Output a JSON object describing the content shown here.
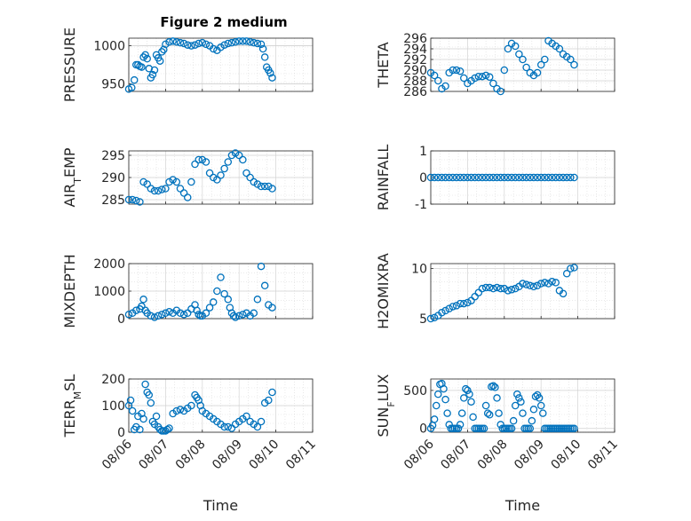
{
  "figure": {
    "title": "Figure 2 medium"
  },
  "chart_data": [
    {
      "type": "scatter",
      "title": "Figure 2 medium",
      "ylabel": "PRESSURE",
      "xlabel": "",
      "xlim": [
        "08/06",
        "08/11"
      ],
      "ylim": [
        940,
        1010
      ],
      "yticks": [
        950,
        1000
      ],
      "xticks": [],
      "grid": true,
      "series": [
        {
          "x": [
            0.0,
            0.08,
            0.15,
            0.2,
            0.25,
            0.3,
            0.35,
            0.4,
            0.45,
            0.5,
            0.55,
            0.6,
            0.65,
            0.7,
            0.75,
            0.8,
            0.85,
            0.9,
            0.95,
            1.0,
            1.1,
            1.2,
            1.3,
            1.4,
            1.5,
            1.6,
            1.7,
            1.8,
            1.9,
            2.0,
            2.1,
            2.2,
            2.3,
            2.4,
            2.5,
            2.6,
            2.7,
            2.8,
            2.9,
            3.0,
            3.1,
            3.2,
            3.3,
            3.4,
            3.5,
            3.6,
            3.65,
            3.7,
            3.75,
            3.8,
            3.85,
            3.9
          ],
          "y": [
            943,
            945,
            955,
            975,
            975,
            973,
            972,
            985,
            988,
            983,
            970,
            958,
            962,
            968,
            988,
            984,
            980,
            992,
            995,
            1002,
            1005,
            1006,
            1005,
            1004,
            1003,
            1001,
            1000,
            1001,
            1003,
            1004,
            1002,
            1000,
            996,
            994,
            998,
            1001,
            1003,
            1004,
            1005,
            1006,
            1006,
            1006,
            1005,
            1004,
            1003,
            1002,
            996,
            985,
            972,
            968,
            964,
            958
          ]
        }
      ]
    },
    {
      "type": "scatter",
      "ylabel": "THETA",
      "xlabel": "",
      "xlim": [
        "08/06",
        "08/11"
      ],
      "ylim": [
        286,
        296
      ],
      "yticks": [
        286,
        288,
        290,
        292,
        294,
        296
      ],
      "xticks": [],
      "grid": true,
      "series": [
        {
          "x": [
            0.0,
            0.1,
            0.2,
            0.3,
            0.4,
            0.5,
            0.6,
            0.7,
            0.8,
            0.9,
            1.0,
            1.1,
            1.2,
            1.3,
            1.4,
            1.5,
            1.6,
            1.7,
            1.8,
            1.9,
            2.0,
            2.1,
            2.2,
            2.3,
            2.4,
            2.5,
            2.6,
            2.7,
            2.8,
            2.9,
            3.0,
            3.1,
            3.2,
            3.3,
            3.4,
            3.5,
            3.6,
            3.7,
            3.8,
            3.9
          ],
          "y": [
            289.5,
            289.0,
            288.0,
            286.5,
            287.0,
            289.5,
            290.0,
            290.0,
            289.8,
            288.5,
            287.5,
            288.0,
            288.5,
            288.8,
            288.8,
            289.0,
            288.7,
            287.5,
            286.5,
            286.0,
            290.0,
            294.0,
            295.0,
            294.5,
            293.0,
            292.0,
            290.5,
            289.5,
            289.0,
            289.5,
            291.0,
            292.0,
            295.5,
            295.0,
            294.5,
            294.0,
            293.0,
            292.5,
            292.0,
            291.0
          ]
        }
      ]
    },
    {
      "type": "scatter",
      "ylabel": "AIR_TEMP",
      "xlabel": "",
      "xlim": [
        "08/06",
        "08/11"
      ],
      "ylim": [
        284,
        296
      ],
      "yticks": [
        285,
        290,
        295
      ],
      "xticks": [],
      "grid": true,
      "series": [
        {
          "x": [
            0.0,
            0.1,
            0.2,
            0.3,
            0.4,
            0.5,
            0.6,
            0.7,
            0.8,
            0.9,
            1.0,
            1.1,
            1.2,
            1.3,
            1.4,
            1.5,
            1.6,
            1.7,
            1.8,
            1.9,
            2.0,
            2.1,
            2.2,
            2.3,
            2.4,
            2.5,
            2.6,
            2.7,
            2.8,
            2.9,
            3.0,
            3.1,
            3.2,
            3.3,
            3.4,
            3.5,
            3.6,
            3.7,
            3.8,
            3.9
          ],
          "y": [
            285.0,
            285.0,
            284.8,
            284.5,
            289.0,
            288.5,
            287.5,
            287.0,
            287.0,
            287.3,
            287.5,
            289.0,
            289.5,
            289.0,
            287.5,
            286.5,
            285.5,
            289.0,
            293.0,
            294.0,
            294.0,
            293.5,
            291.0,
            290.0,
            289.5,
            290.5,
            292.0,
            293.5,
            295.0,
            295.5,
            295.0,
            294.0,
            291.0,
            290.0,
            289.0,
            288.5,
            288.0,
            288.0,
            288.0,
            287.5
          ]
        }
      ]
    },
    {
      "type": "scatter",
      "ylabel": "RAINFALL",
      "xlabel": "",
      "xlim": [
        "08/06",
        "08/11"
      ],
      "ylim": [
        -1,
        1
      ],
      "yticks": [
        -1,
        0,
        1
      ],
      "xticks": [],
      "grid": true,
      "series": [
        {
          "x": [
            0.0,
            0.1,
            0.2,
            0.3,
            0.4,
            0.5,
            0.6,
            0.7,
            0.8,
            0.9,
            1.0,
            1.1,
            1.2,
            1.3,
            1.4,
            1.5,
            1.6,
            1.7,
            1.8,
            1.9,
            2.0,
            2.1,
            2.2,
            2.3,
            2.4,
            2.5,
            2.6,
            2.7,
            2.8,
            2.9,
            3.0,
            3.1,
            3.2,
            3.3,
            3.4,
            3.5,
            3.6,
            3.7,
            3.8,
            3.9
          ],
          "y": [
            0,
            0,
            0,
            0,
            0,
            0,
            0,
            0,
            0,
            0,
            0,
            0,
            0,
            0,
            0,
            0,
            0,
            0,
            0,
            0,
            0,
            0,
            0,
            0,
            0,
            0,
            0,
            0,
            0,
            0,
            0,
            0,
            0,
            0,
            0,
            0,
            0,
            0,
            0,
            0
          ]
        }
      ]
    },
    {
      "type": "scatter",
      "ylabel": "MIXDEPTH",
      "xlabel": "",
      "xlim": [
        "08/06",
        "08/11"
      ],
      "ylim": [
        0,
        2000
      ],
      "yticks": [
        0,
        1000,
        2000
      ],
      "xticks": [],
      "grid": true,
      "series": [
        {
          "x": [
            0.0,
            0.1,
            0.2,
            0.3,
            0.35,
            0.4,
            0.45,
            0.5,
            0.6,
            0.7,
            0.8,
            0.9,
            1.0,
            1.1,
            1.2,
            1.3,
            1.4,
            1.5,
            1.6,
            1.7,
            1.8,
            1.85,
            1.9,
            1.95,
            2.0,
            2.1,
            2.2,
            2.3,
            2.4,
            2.5,
            2.6,
            2.7,
            2.75,
            2.8,
            2.85,
            2.9,
            3.0,
            3.1,
            3.2,
            3.3,
            3.4,
            3.5,
            3.6,
            3.7,
            3.8,
            3.9
          ],
          "y": [
            150,
            200,
            300,
            350,
            450,
            700,
            300,
            200,
            100,
            50,
            100,
            150,
            200,
            250,
            200,
            300,
            200,
            150,
            200,
            350,
            500,
            300,
            150,
            100,
            100,
            200,
            400,
            600,
            1000,
            1500,
            900,
            700,
            400,
            200,
            100,
            50,
            100,
            150,
            200,
            100,
            200,
            700,
            1900,
            1200,
            500,
            400
          ]
        }
      ]
    },
    {
      "type": "scatter",
      "ylabel": "H2OMIXRA",
      "xlabel": "",
      "xlim": [
        "08/06",
        "08/11"
      ],
      "ylim": [
        5,
        10.5
      ],
      "yticks": [
        5,
        10
      ],
      "xticks": [],
      "grid": true,
      "series": [
        {
          "x": [
            0.0,
            0.1,
            0.2,
            0.3,
            0.4,
            0.5,
            0.6,
            0.7,
            0.8,
            0.9,
            1.0,
            1.1,
            1.2,
            1.3,
            1.4,
            1.5,
            1.6,
            1.7,
            1.8,
            1.9,
            2.0,
            2.1,
            2.2,
            2.3,
            2.4,
            2.5,
            2.6,
            2.7,
            2.8,
            2.9,
            3.0,
            3.1,
            3.2,
            3.3,
            3.4,
            3.5,
            3.6,
            3.7,
            3.8,
            3.9
          ],
          "y": [
            5.0,
            5.1,
            5.3,
            5.6,
            5.8,
            6.0,
            6.2,
            6.3,
            6.5,
            6.5,
            6.6,
            6.8,
            7.2,
            7.6,
            8.0,
            8.1,
            8.1,
            8.0,
            8.1,
            8.0,
            8.0,
            7.8,
            7.9,
            8.0,
            8.2,
            8.5,
            8.4,
            8.3,
            8.2,
            8.3,
            8.5,
            8.6,
            8.5,
            8.7,
            8.6,
            7.8,
            7.5,
            9.5,
            10.0,
            10.1
          ]
        }
      ]
    },
    {
      "type": "scatter",
      "ylabel": "TERR_MSL",
      "xlabel": "Time",
      "xlim": [
        "08/06",
        "08/11"
      ],
      "ylim": [
        0,
        200
      ],
      "yticks": [
        0,
        100,
        200
      ],
      "xticks": [
        "08/06",
        "08/07",
        "08/08",
        "08/09",
        "08/10",
        "08/11"
      ],
      "grid": true,
      "series": [
        {
          "x": [
            0.0,
            0.05,
            0.1,
            0.15,
            0.2,
            0.25,
            0.3,
            0.35,
            0.4,
            0.45,
            0.5,
            0.55,
            0.6,
            0.65,
            0.7,
            0.75,
            0.8,
            0.85,
            0.9,
            0.95,
            1.0,
            1.05,
            1.1,
            1.2,
            1.3,
            1.4,
            1.5,
            1.6,
            1.7,
            1.8,
            1.85,
            1.9,
            1.95,
            2.0,
            2.1,
            2.2,
            2.3,
            2.4,
            2.5,
            2.6,
            2.7,
            2.8,
            2.9,
            3.0,
            3.1,
            3.2,
            3.3,
            3.4,
            3.5,
            3.6,
            3.7,
            3.8,
            3.9
          ],
          "y": [
            100,
            120,
            80,
            10,
            20,
            60,
            10,
            70,
            50,
            180,
            150,
            140,
            110,
            40,
            30,
            60,
            20,
            10,
            5,
            5,
            5,
            10,
            15,
            70,
            80,
            85,
            80,
            90,
            100,
            140,
            130,
            120,
            100,
            80,
            70,
            60,
            50,
            40,
            30,
            20,
            20,
            15,
            30,
            40,
            50,
            60,
            40,
            30,
            20,
            40,
            110,
            120,
            150
          ]
        }
      ]
    },
    {
      "type": "scatter",
      "ylabel": "SUN_FLUX",
      "xlabel": "Time",
      "xlim": [
        "08/06",
        "08/11"
      ],
      "ylim": [
        -50,
        650
      ],
      "yticks": [
        0,
        500
      ],
      "xticks": [
        "08/06",
        "08/07",
        "08/08",
        "08/09",
        "08/10",
        "08/11"
      ],
      "grid": true,
      "series": [
        {
          "x": [
            0.0,
            0.05,
            0.1,
            0.15,
            0.2,
            0.25,
            0.3,
            0.35,
            0.4,
            0.45,
            0.5,
            0.55,
            0.6,
            0.65,
            0.7,
            0.75,
            0.8,
            0.85,
            0.9,
            0.95,
            1.0,
            1.05,
            1.1,
            1.15,
            1.2,
            1.25,
            1.3,
            1.35,
            1.4,
            1.45,
            1.5,
            1.55,
            1.6,
            1.65,
            1.7,
            1.75,
            1.8,
            1.85,
            1.9,
            1.95,
            2.0,
            2.05,
            2.1,
            2.15,
            2.2,
            2.25,
            2.3,
            2.35,
            2.4,
            2.45,
            2.5,
            2.55,
            2.6,
            2.65,
            2.7,
            2.75,
            2.8,
            2.85,
            2.9,
            2.95,
            3.0,
            3.05,
            3.1,
            3.15,
            3.2,
            3.25,
            3.3,
            3.35,
            3.4,
            3.45,
            3.5,
            3.55,
            3.6,
            3.65,
            3.7,
            3.75,
            3.8,
            3.85,
            3.9
          ],
          "y": [
            0,
            40,
            120,
            300,
            450,
            580,
            590,
            520,
            380,
            200,
            50,
            0,
            0,
            0,
            0,
            0,
            50,
            200,
            400,
            520,
            500,
            450,
            350,
            150,
            0,
            0,
            0,
            0,
            0,
            0,
            300,
            200,
            180,
            550,
            560,
            540,
            400,
            200,
            50,
            0,
            0,
            0,
            0,
            0,
            0,
            100,
            300,
            450,
            400,
            350,
            200,
            0,
            0,
            0,
            0,
            100,
            250,
            420,
            440,
            400,
            300,
            200,
            0,
            0,
            0,
            0,
            0,
            0,
            0,
            0,
            0,
            0,
            0,
            0,
            0,
            0,
            0,
            0,
            0
          ]
        }
      ]
    }
  ]
}
